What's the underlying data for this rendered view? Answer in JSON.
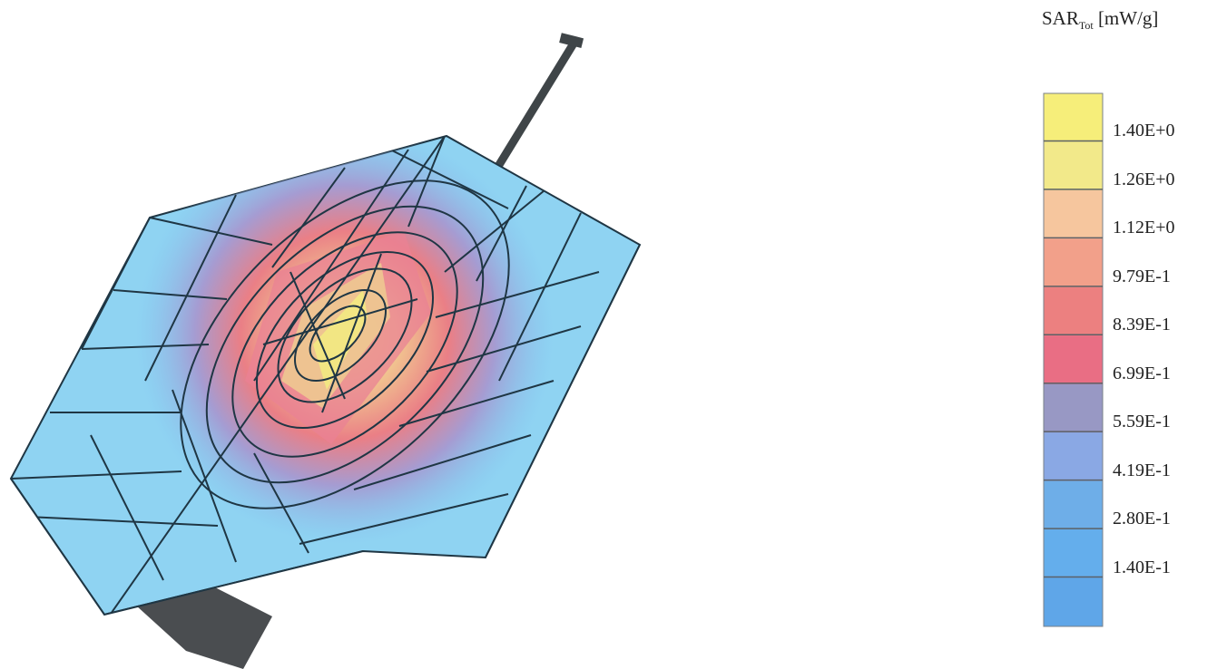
{
  "legend": {
    "title_main": "SAR",
    "title_sub": "Tot",
    "title_unit": "[mW/g]",
    "ticks": [
      "1.40E+0",
      "1.26E+0",
      "1.12E+0",
      "9.79E-1",
      "8.39E-1",
      "6.99E-1",
      "5.59E-1",
      "4.19E-1",
      "2.80E-1",
      "1.40E-1"
    ],
    "band_colors": [
      "#f6ee7a",
      "#f2e98a",
      "#f6c69e",
      "#f2a08a",
      "#ec8080",
      "#e96e84",
      "#9898c4",
      "#8aa8e4",
      "#6eaee8",
      "#64aeec",
      "#5fa6e8"
    ]
  },
  "colors": {
    "mesh_base": "#8fd3f2",
    "mesh_line": "#1f3644",
    "antenna": "#3f4548",
    "body_shadow": "#4a4d50"
  }
}
